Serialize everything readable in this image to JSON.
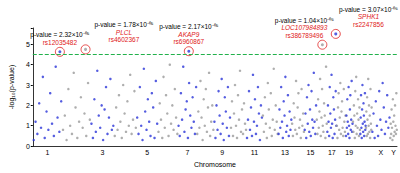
{
  "chart_data": {
    "type": "scatter",
    "marker": "circle",
    "x_label": "Chromosome",
    "y_label": "-log₁₀(p-value)",
    "categories": [
      "1",
      null,
      "3",
      null,
      "5",
      null,
      "7",
      null,
      "9",
      null,
      "11",
      null,
      "13",
      null,
      "15",
      null,
      "17",
      null,
      "19",
      null,
      null,
      null,
      "X",
      "Y"
    ],
    "lengths_mb": [
      249,
      243,
      198,
      191,
      181,
      171,
      159,
      146,
      141,
      136,
      135,
      134,
      115,
      107,
      103,
      90,
      81,
      78,
      59,
      63,
      48,
      51,
      155,
      59
    ],
    "colors": [
      "#2b35d8",
      "#9a9a9a",
      "#2b35d8",
      "#9a9a9a",
      "#2b35d8",
      "#9a9a9a",
      "#2b35d8",
      "#9a9a9a",
      "#2b35d8",
      "#9a9a9a",
      "#2b35d8",
      "#9a9a9a",
      "#2b35d8",
      "#9a9a9a",
      "#2b35d8",
      "#9a9a9a",
      "#2b35d8",
      "#9a9a9a",
      "#2b35d8",
      "#9a9a9a",
      "#2b35d8",
      "#9a9a9a",
      "#2b35d8",
      "#9a9a9a"
    ],
    "values": [
      [
        0.3,
        1.2,
        0.6,
        2.1,
        0.9,
        3.4,
        0.4,
        1.7,
        0.8,
        2.6,
        1.1,
        0.5,
        3.9,
        1.4,
        0.7,
        2.2
      ],
      [
        0.8,
        1.5,
        0.3,
        2.8,
        1.0,
        0.6,
        3.6,
        1.9,
        0.4,
        1.2,
        2.4,
        0.9,
        1.6,
        0.5,
        3.1,
        1.3
      ],
      [
        1.1,
        0.4,
        2.3,
        0.7,
        3.7,
        1.5,
        0.9,
        2.0,
        0.3,
        1.8,
        2.9,
        0.6,
        1.4,
        3.3,
        0.8,
        1.0
      ],
      [
        0.5,
        1.9,
        0.8,
        2.5,
        1.2,
        0.4,
        3.0,
        1.6,
        0.7,
        2.2,
        1.0,
        3.5,
        0.6,
        1.3,
        2.7,
        0.9
      ],
      [
        1.4,
        0.6,
        2.9,
        1.0,
        0.3,
        3.8,
        1.7,
        0.8,
        2.3,
        1.2,
        0.5,
        2.6,
        1.9,
        0.4,
        3.2,
        1.1
      ],
      [
        0.7,
        2.1,
        1.3,
        0.4,
        3.4,
        0.9,
        2.5,
        1.6,
        0.5,
        4.0,
        1.1,
        2.0,
        0.8,
        2.8,
        1.4,
        0.6
      ],
      [
        1.0,
        0.5,
        2.6,
        1.3,
        3.9,
        0.7,
        1.8,
        2.2,
        0.4,
        3.1,
        1.5,
        0.9,
        2.4,
        1.2,
        0.6,
        2.9
      ],
      [
        0.6,
        1.7,
        0.9,
        3.2,
        1.4,
        0.3,
        2.3,
        1.0,
        2.8,
        0.7,
        1.9,
        3.6,
        0.5,
        1.2,
        2.0,
        0.8
      ],
      [
        1.2,
        0.4,
        2.0,
        0.8,
        2.7,
        1.5,
        0.6,
        3.3,
        1.1,
        0.3,
        2.4,
        1.7,
        0.9,
        2.9,
        0.5,
        1.4
      ],
      [
        0.9,
        2.2,
        0.5,
        1.6,
        3.0,
        1.0,
        0.4,
        2.5,
        1.3,
        3.7,
        0.7,
        1.8,
        0.6,
        2.1,
        1.1,
        0.8
      ],
      [
        0.4,
        1.3,
        2.7,
        0.8,
        1.9,
        0.5,
        3.5,
        1.2,
        2.3,
        0.6,
        1.0,
        2.9,
        1.6,
        0.3,
        2.0,
        1.4
      ],
      [
        1.5,
        0.7,
        2.4,
        1.1,
        0.4,
        3.1,
        1.8,
        0.9,
        2.6,
        0.5,
        1.3,
        3.8,
        0.8,
        2.0,
        1.2,
        0.6
      ],
      [
        0.6,
        1.8,
        0.9,
        2.9,
        1.2,
        0.4,
        2.2,
        1.5,
        3.4,
        0.7,
        1.0,
        2.5,
        0.5,
        1.7,
        0.8,
        1.3
      ],
      [
        1.1,
        0.5,
        2.1,
        1.4,
        0.8,
        3.2,
        0.6,
        1.9,
        2.6,
        0.9,
        1.3,
        0.4,
        2.8,
        1.0,
        1.6,
        0.7
      ],
      [
        0.8,
        1.6,
        0.4,
        2.4,
        1.1,
        3.0,
        0.7,
        1.8,
        0.5,
        2.7,
        1.3,
        0.9,
        3.6,
        1.2,
        0.6,
        2.0
      ],
      [
        1.3,
        0.6,
        2.3,
        0.9,
        1.7,
        3.3,
        0.5,
        1.4,
        2.8,
        1.0,
        0.7,
        2.1,
        1.5,
        0.4,
        3.9,
        1.1
      ],
      [
        0.7,
        2.0,
        1.2,
        0.5,
        2.9,
        1.6,
        0.9,
        3.5,
        1.1,
        0.4,
        2.4,
        1.8,
        0.6,
        1.3,
        2.7,
        1.0
      ],
      [
        1.0,
        0.4,
        1.9,
        2.6,
        0.8,
        1.4,
        3.1,
        0.6,
        1.7,
        2.2,
        0.9,
        0.5,
        2.8,
        1.2,
        0.7,
        1.5
      ],
      [
        0.5,
        1.5,
        0.9,
        2.3,
        1.2,
        0.6,
        2.9,
        1.0,
        0.4,
        1.8,
        2.5,
        0.8,
        1.3,
        3.2,
        0.7,
        1.1
      ],
      [
        1.2,
        0.7,
        2.0,
        1.5,
        0.4,
        2.7,
        1.0,
        3.4,
        0.6,
        1.6,
        0.9,
        2.3,
        1.3,
        0.5,
        1.9,
        0.8
      ],
      [
        0.6,
        1.4,
        2.5,
        0.9,
        0.4,
        1.8,
        3.0,
        1.1,
        0.7,
        2.1,
        1.5,
        0.5,
        1.2,
        2.6,
        0.8,
        1.0
      ],
      [
        0.9,
        1.7,
        0.5,
        2.4,
        1.3,
        0.6,
        3.3,
        1.0,
        2.0,
        0.7,
        1.5,
        0.4,
        2.8,
        1.1,
        0.8,
        1.9
      ],
      [
        0.7,
        1.6,
        0.4,
        2.2,
        1.0,
        0.5,
        2.7,
        1.3,
        0.8,
        3.1,
        1.9,
        0.6,
        1.2,
        2.5,
        0.9,
        1.4
      ],
      [
        0.4,
        1.1,
        0.6,
        1.8,
        0.9,
        0.3,
        2.3,
        1.2,
        0.5,
        1.5,
        0.7,
        2.0,
        1.0,
        0.6,
        2.6,
        0.8
      ]
    ],
    "ylim": [
      0,
      5.8
    ],
    "yticks": [
      0,
      1,
      2,
      3,
      4,
      5
    ],
    "grid": false,
    "threshold": {
      "value": 4.5,
      "color": "#22b14c",
      "line_style": "dashed"
    },
    "annotations": [
      {
        "chromosome": 1,
        "position_mb": 230,
        "value": 4.63,
        "p_label": "p-value = 2.32×10⁻⁰⁵",
        "snp": "rs12035482",
        "color": "#e02020"
      },
      {
        "chromosome": 2,
        "position_mb": 199,
        "value": 4.75,
        "p_label": "p-value = 1.78×10⁻⁰⁵",
        "gene": "PLCL",
        "snp": "rs4602367",
        "color": "#e02020"
      },
      {
        "chromosome": 7,
        "position_mb": 92,
        "value": 4.66,
        "p_label": "p-value = 2.17×10⁻⁰⁵",
        "gene": "AKAP9",
        "snp": "rs6960867",
        "color": "#e02020"
      },
      {
        "chromosome": 16,
        "position_mb": 50,
        "value": 4.98,
        "p_label": "p-value = 1.04×10⁻⁰⁵",
        "gene": "LOC107984893",
        "snp": "rs386789496",
        "color": "#e02020"
      },
      {
        "chromosome": 17,
        "position_mb": 74,
        "value": 5.51,
        "p_label": "p-value = 3.07×10⁻⁰⁶",
        "gene": "SPHK1",
        "snp": "rs2247856",
        "color": "#e02020"
      }
    ]
  }
}
